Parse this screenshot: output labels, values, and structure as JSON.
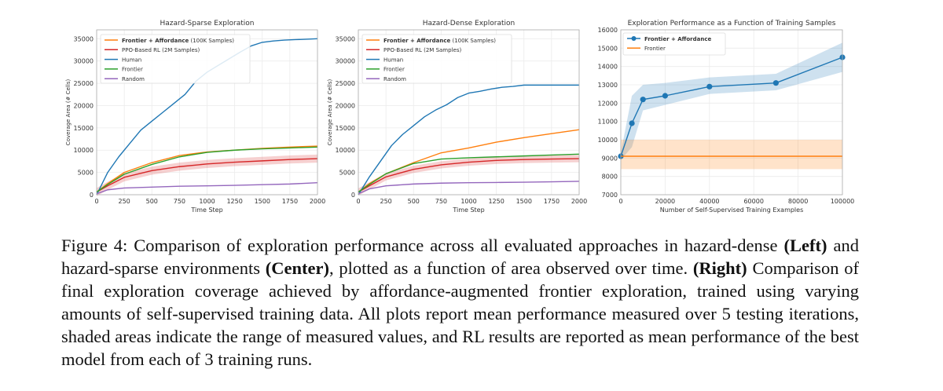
{
  "colors": {
    "frontier_affordance": "#ff7f0e",
    "ppo": "#d62728",
    "human": "#1f77b4",
    "frontier": "#2ca02c",
    "random": "#9467bd",
    "grid": "#ebebeb",
    "frame": "#aaaaaa"
  },
  "chart_data": [
    {
      "type": "line",
      "title": "Hazard-Sparse Exploration",
      "xlabel": "Time Step",
      "ylabel": "Coverage Area (# Cells)",
      "xlim": [
        0,
        2000
      ],
      "ylim": [
        0,
        37000
      ],
      "xticks": [
        0,
        250,
        500,
        750,
        1000,
        1250,
        1500,
        1750,
        2000
      ],
      "yticks": [
        0,
        5000,
        10000,
        15000,
        20000,
        25000,
        30000,
        35000
      ],
      "legend_position": "top-left",
      "series": [
        {
          "name": "Frontier + Affordance",
          "label": "Frontier + Affordance (100K Samples)",
          "color_key": "frontier_affordance",
          "x": [
            0,
            100,
            250,
            500,
            750,
            1000,
            1250,
            1500,
            1750,
            2000
          ],
          "y": [
            600,
            2500,
            5000,
            7200,
            8800,
            9600,
            10000,
            10400,
            10700,
            10900
          ]
        },
        {
          "name": "PPO-Based RL (2M Samples)",
          "label": "PPO-Based RL (2M Samples)",
          "color_key": "ppo",
          "x": [
            0,
            100,
            250,
            500,
            750,
            1000,
            1250,
            1500,
            1750,
            2000
          ],
          "y": [
            600,
            2000,
            3900,
            5400,
            6300,
            6900,
            7300,
            7600,
            7900,
            8100
          ],
          "band": [
            900,
            900,
            900,
            900,
            900,
            900,
            900,
            900,
            900,
            900
          ]
        },
        {
          "name": "Human",
          "label": "Human",
          "color_key": "human",
          "x": [
            0,
            100,
            200,
            300,
            400,
            500,
            600,
            700,
            800,
            900,
            1000,
            1100,
            1200,
            1300,
            1400,
            1500,
            1600,
            1700,
            1800,
            1900,
            2000
          ],
          "y": [
            0,
            5000,
            8500,
            11500,
            14500,
            16500,
            18500,
            20500,
            22500,
            25500,
            27500,
            29000,
            30500,
            32000,
            33400,
            34200,
            34500,
            34700,
            34800,
            34900,
            35000
          ]
        },
        {
          "name": "Frontier",
          "label": "Frontier",
          "color_key": "frontier",
          "x": [
            0,
            100,
            250,
            500,
            750,
            1000,
            1250,
            1500,
            1750,
            2000
          ],
          "y": [
            600,
            2300,
            4600,
            6800,
            8500,
            9500,
            10000,
            10300,
            10500,
            10700
          ]
        },
        {
          "name": "Random",
          "label": "Random",
          "color_key": "random",
          "x": [
            0,
            100,
            250,
            500,
            750,
            1000,
            1250,
            1500,
            1750,
            2000
          ],
          "y": [
            200,
            1100,
            1500,
            1700,
            1900,
            2000,
            2100,
            2250,
            2400,
            2700
          ]
        }
      ]
    },
    {
      "type": "line",
      "title": "Hazard-Dense Exploration",
      "xlabel": "Time Step",
      "ylabel": "Coverage Area (# Cells)",
      "xlim": [
        0,
        2000
      ],
      "ylim": [
        0,
        37000
      ],
      "xticks": [
        0,
        250,
        500,
        750,
        1000,
        1250,
        1500,
        1750,
        2000
      ],
      "yticks": [
        0,
        5000,
        10000,
        15000,
        20000,
        25000,
        30000,
        35000
      ],
      "legend_position": "top-left",
      "series": [
        {
          "name": "Frontier + Affordance",
          "label": "Frontier + Affordance (100K Samples)",
          "color_key": "frontier_affordance",
          "x": [
            0,
            100,
            250,
            500,
            750,
            1000,
            1250,
            1500,
            1750,
            2000
          ],
          "y": [
            600,
            2500,
            4700,
            7200,
            9400,
            10500,
            11800,
            12800,
            13700,
            14600
          ]
        },
        {
          "name": "PPO-Based RL (2M Samples)",
          "label": "PPO-Based RL (2M Samples)",
          "color_key": "ppo",
          "x": [
            0,
            100,
            250,
            500,
            750,
            1000,
            1250,
            1500,
            1750,
            2000
          ],
          "y": [
            600,
            2000,
            4000,
            5700,
            6700,
            7300,
            7700,
            7900,
            8000,
            8100
          ],
          "band": [
            800,
            800,
            800,
            800,
            800,
            800,
            800,
            800,
            800,
            800
          ]
        },
        {
          "name": "Human",
          "label": "Human",
          "color_key": "human",
          "x": [
            0,
            100,
            200,
            300,
            400,
            500,
            600,
            700,
            800,
            900,
            1000,
            1100,
            1200,
            1300,
            1400,
            1500,
            1600,
            1700,
            1800,
            1900,
            2000
          ],
          "y": [
            0,
            4000,
            7500,
            11000,
            13500,
            15500,
            17500,
            19000,
            20200,
            21800,
            22800,
            23200,
            23700,
            24100,
            24300,
            24600,
            24600,
            24600,
            24600,
            24600,
            24600
          ]
        },
        {
          "name": "Frontier",
          "label": "Frontier",
          "color_key": "frontier",
          "x": [
            0,
            100,
            250,
            500,
            750,
            1000,
            1250,
            1500,
            1750,
            2000
          ],
          "y": [
            600,
            2300,
            4700,
            7000,
            8000,
            8300,
            8500,
            8700,
            8900,
            9100
          ]
        },
        {
          "name": "Random",
          "label": "Random",
          "color_key": "random",
          "x": [
            0,
            100,
            250,
            500,
            750,
            1000,
            1250,
            1500,
            1750,
            2000
          ],
          "y": [
            200,
            1300,
            2000,
            2400,
            2600,
            2700,
            2750,
            2800,
            2900,
            3000
          ]
        }
      ]
    },
    {
      "type": "line",
      "title": "Exploration Performance as a Function of Training Samples",
      "xlabel": "Number of Self-Supervised Training Examples",
      "ylabel": "",
      "xlim": [
        0,
        100000
      ],
      "ylim": [
        7000,
        16000
      ],
      "xticks": [
        0,
        20000,
        40000,
        60000,
        80000,
        100000
      ],
      "yticks": [
        7000,
        8000,
        9000,
        10000,
        11000,
        12000,
        13000,
        14000,
        15000,
        16000
      ],
      "legend_position": "top-left",
      "series": [
        {
          "name": "Frontier + Affordance",
          "label": "Frontier + Affordance",
          "color_key": "human",
          "markers": true,
          "x": [
            0,
            5000,
            10000,
            20000,
            40000,
            70000,
            100000
          ],
          "y": [
            9100,
            10900,
            12200,
            12400,
            12900,
            13100,
            14500
          ],
          "band_low": [
            8900,
            9600,
            11600,
            11900,
            12500,
            12700,
            13700
          ],
          "band_high": [
            9300,
            12400,
            13000,
            13100,
            13400,
            13600,
            15300
          ]
        },
        {
          "name": "Frontier",
          "label": "Frontier",
          "color_key": "frontier_affordance",
          "markers": false,
          "x": [
            0,
            100000
          ],
          "y": [
            9100,
            9100
          ],
          "band_low": [
            8400,
            8400
          ],
          "band_high": [
            10000,
            10000
          ]
        }
      ]
    }
  ],
  "caption": {
    "label": "Figure 4:",
    "seg1": " Comparison of exploration performance across all evaluated approaches in hazard-dense ",
    "left": "(Left)",
    "seg2": " and hazard-sparse environments ",
    "center": "(Center)",
    "seg3": ", plotted as a function of area observed over time. ",
    "right": "(Right)",
    "seg4": " Comparison of final exploration coverage achieved by affordance-augmented frontier exploration, trained using varying amounts of self-supervised training data.  All plots report mean performance measured over 5 testing iterations, shaded areas indicate the range of measured values, and RL results are reported as mean performance of the best model from each of 3 training runs."
  }
}
